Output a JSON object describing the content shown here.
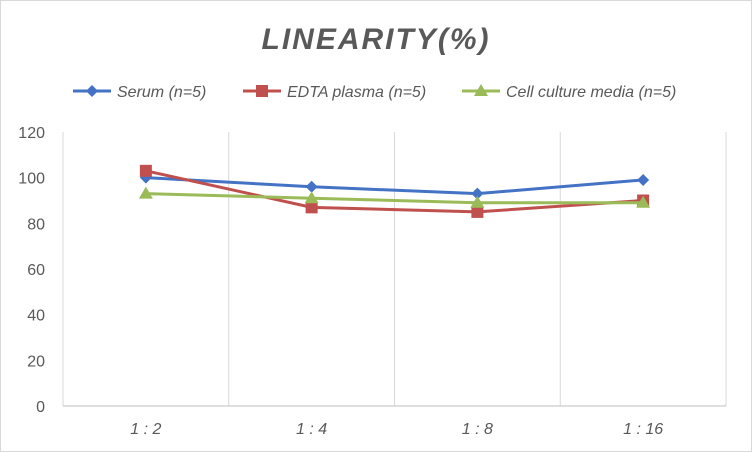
{
  "chart_data": {
    "type": "line",
    "title": "LINEARITY(%)",
    "xlabel": "",
    "ylabel": "",
    "categories": [
      "1:2",
      "1:4",
      "1:8",
      "1:16"
    ],
    "ylim": [
      0,
      120
    ],
    "yticks": [
      0,
      20,
      40,
      60,
      80,
      100,
      120
    ],
    "grid": "vertical",
    "legend_position": "top",
    "series": [
      {
        "name": "Serum (n=5)",
        "values": [
          100,
          96,
          93,
          99
        ],
        "color": "#4472c4",
        "marker": "diamond"
      },
      {
        "name": "EDTA plasma (n=5)",
        "values": [
          103,
          87,
          85,
          90
        ],
        "color": "#c0504d",
        "marker": "square"
      },
      {
        "name": "Cell culture media (n=5)",
        "values": [
          93,
          91,
          89,
          89
        ],
        "color": "#9bbb59",
        "marker": "triangle"
      }
    ]
  }
}
